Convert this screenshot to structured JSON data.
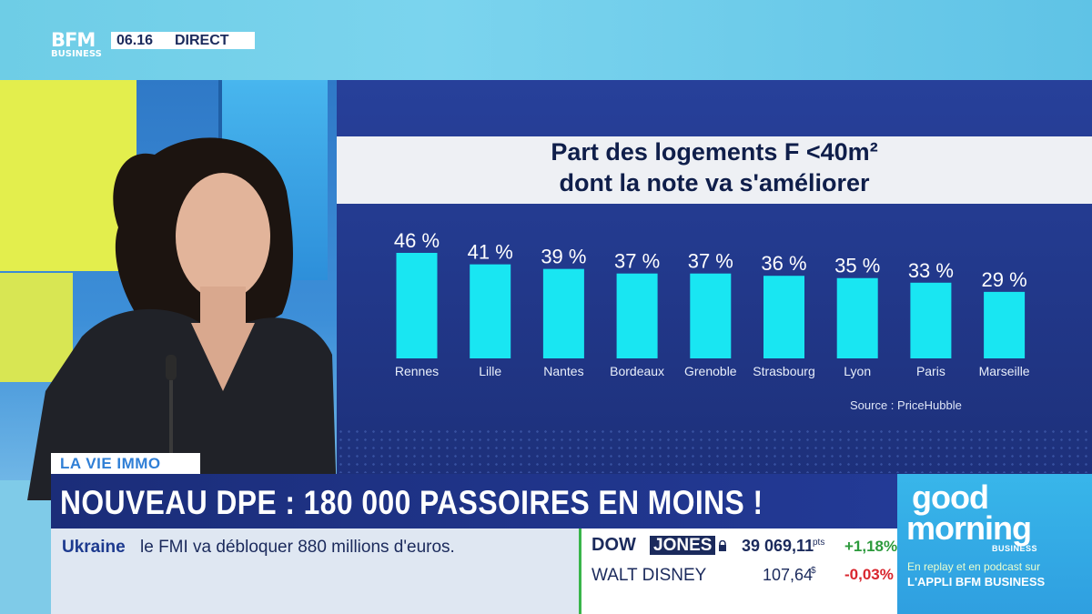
{
  "broadcast": {
    "logo_top": "BFM",
    "logo_bottom": "BUSINESS",
    "time": "06.16",
    "live": "DIRECT"
  },
  "chart_data": {
    "type": "bar",
    "title": "Part des logements F <40m²",
    "subtitle": "dont la note va s'améliorer",
    "categories": [
      "Rennes",
      "Lille",
      "Nantes",
      "Bordeaux",
      "Grenoble",
      "Strasbourg",
      "Lyon",
      "Paris",
      "Marseille"
    ],
    "values": [
      46,
      41,
      39,
      37,
      37,
      36,
      35,
      33,
      29
    ],
    "value_labels": [
      "46 %",
      "41 %",
      "39 %",
      "37 %",
      "37 %",
      "36 %",
      "35 %",
      "33 %",
      "29 %"
    ],
    "unit": "%",
    "ylim": [
      0,
      50
    ],
    "bar_color": "#19e6f2",
    "grid": false,
    "source": "Source : PriceHubble"
  },
  "lower_third": {
    "tag": "LA VIE IMMO",
    "headline": "NOUVEAU DPE : 180 000 PASSOIRES EN MOINS !"
  },
  "ticker": {
    "topic": "Ukraine",
    "text": "le FMI va débloquer 880 millions d'euros."
  },
  "markets": {
    "index_a": "DOW",
    "index_b": "JONES",
    "index_value": "39 069,11",
    "index_unit": "pts",
    "index_change": "+1,18%",
    "stock_name": "WALT DISNEY",
    "stock_value": "107,64",
    "stock_unit": "$",
    "stock_change": "-0,03%",
    "up_color": "#2c9a3c",
    "down_color": "#d9262e"
  },
  "promo": {
    "line1": "good",
    "line2": "morning",
    "line3": "BUSINESS",
    "replay": "En replay et en podcast sur",
    "app": "L'APPLI BFM BUSINESS"
  }
}
